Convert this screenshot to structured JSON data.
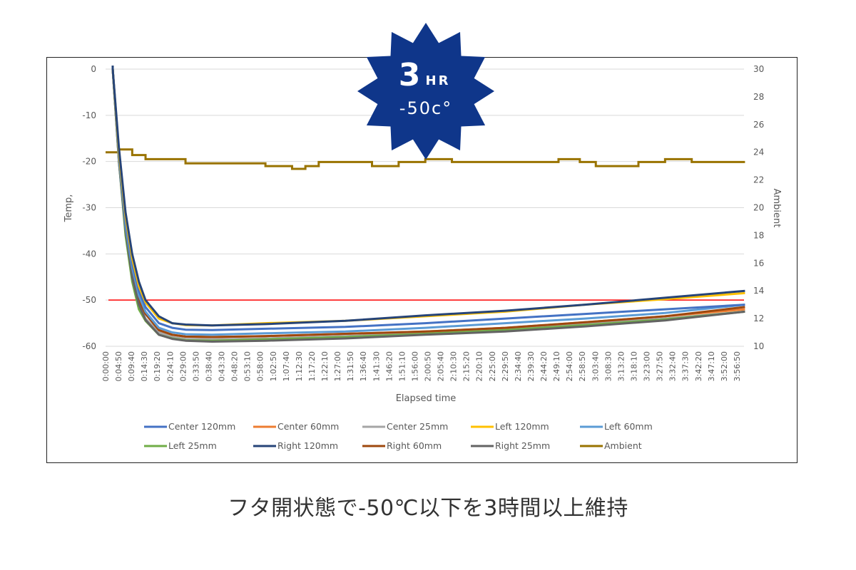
{
  "caption": "フタ開状態で-50℃以下を3時間以上維持",
  "badge": {
    "line1_big": "3",
    "line1_small": "HR",
    "line2": "-50c°",
    "color": "#0f368a"
  },
  "chart_data": {
    "type": "line",
    "xlabel": "Elapsed time",
    "ylabel": "Temp,",
    "y2label": "Ambient",
    "ylim": [
      -60,
      0
    ],
    "y2lim": [
      10,
      30
    ],
    "yticks": [
      0,
      -10,
      -20,
      -30,
      -40,
      -50,
      -60
    ],
    "y2ticks": [
      30,
      28,
      26,
      24,
      22,
      20,
      18,
      16,
      14,
      12,
      10
    ],
    "grid": true,
    "legend": "bottom",
    "threshold": {
      "value": -50,
      "color": "#ff0000"
    },
    "xticks": [
      "0:00:00",
      "0:04:50",
      "0:09:40",
      "0:14:30",
      "0:19:20",
      "0:24:10",
      "0:29:00",
      "0:33:50",
      "0:38:40",
      "0:43:30",
      "0:48:20",
      "0:53:10",
      "0:58:00",
      "1:02:50",
      "1:07:40",
      "1:12:30",
      "1:17:20",
      "1:22:10",
      "1:27:00",
      "1:31:50",
      "1:36:40",
      "1:41:30",
      "1:46:20",
      "1:51:10",
      "1:56:00",
      "2:00:50",
      "2:05:40",
      "2:10:30",
      "2:15:20",
      "2:20:10",
      "2:25:00",
      "2:29:50",
      "2:34:40",
      "2:39:30",
      "2:44:20",
      "2:49:10",
      "2:54:00",
      "2:58:50",
      "3:03:40",
      "3:08:30",
      "3:13:20",
      "3:18:10",
      "3:23:00",
      "3:27:50",
      "3:32:40",
      "3:37:30",
      "3:42:20",
      "3:47:10",
      "3:52:00",
      "3:56:50"
    ],
    "x": [
      "0:02:40",
      "0:05:00",
      "0:07:30",
      "0:10:00",
      "0:12:30",
      "0:15:00",
      "0:20:00",
      "0:25:00",
      "0:30:00",
      "0:40:00",
      "1:00:00",
      "1:30:00",
      "2:00:00",
      "2:30:00",
      "3:00:00",
      "3:30:00",
      "4:00:00"
    ],
    "series": [
      {
        "name": "Center 120mm",
        "color": "#4472c4",
        "axis": "left",
        "values": [
          0,
          -18,
          -33,
          -42,
          -48,
          -51.5,
          -55,
          -56,
          -56.4,
          -56.5,
          -56.2,
          -55.8,
          -55,
          -54,
          -53,
          -52,
          -51
        ]
      },
      {
        "name": "Center 60mm",
        "color": "#ed7d31",
        "axis": "left",
        "values": [
          0,
          -19,
          -34,
          -44,
          -50,
          -53,
          -56.5,
          -57.5,
          -57.9,
          -58,
          -57.8,
          -57.3,
          -56.8,
          -56,
          -54.8,
          -53.5,
          -52
        ]
      },
      {
        "name": "Center 25mm",
        "color": "#a5a5a5",
        "axis": "left",
        "values": [
          0,
          -20,
          -35,
          -45,
          -51,
          -54,
          -57,
          -58,
          -58.4,
          -58.5,
          -58.3,
          -57.8,
          -57.2,
          -56.3,
          -55.2,
          -54,
          -52.5
        ]
      },
      {
        "name": "Left 120mm",
        "color": "#ffc000",
        "axis": "left",
        "values": [
          0,
          -18,
          -32,
          -41,
          -47,
          -50.5,
          -54,
          -55,
          -55.4,
          -55.5,
          -55,
          -54.5,
          -53.5,
          -52.5,
          -51,
          -49.8,
          -48.5
        ]
      },
      {
        "name": "Left 60mm",
        "color": "#5b9bd5",
        "axis": "left",
        "values": [
          0,
          -19,
          -34,
          -43,
          -49,
          -52.5,
          -56,
          -57,
          -57.4,
          -57.5,
          -57.2,
          -56.8,
          -56,
          -55,
          -54,
          -52.8,
          -51
        ]
      },
      {
        "name": "Left 25mm",
        "color": "#70ad47",
        "axis": "left",
        "values": [
          0,
          -20,
          -36,
          -46,
          -52,
          -54.5,
          -57.5,
          -58.3,
          -58.7,
          -58.8,
          -58.5,
          -58,
          -57.3,
          -56.5,
          -55.4,
          -54.2,
          -52.5
        ]
      },
      {
        "name": "Right 120mm",
        "color": "#264478",
        "axis": "left",
        "values": [
          0,
          -17,
          -31,
          -40,
          -46,
          -50,
          -53.5,
          -55,
          -55.3,
          -55.5,
          -55.2,
          -54.5,
          -53.3,
          -52.3,
          -51,
          -49.5,
          -48
        ]
      },
      {
        "name": "Right 60mm",
        "color": "#9e480e",
        "axis": "left",
        "values": [
          0,
          -19,
          -34,
          -44,
          -50,
          -53,
          -56.5,
          -57.5,
          -57.9,
          -58,
          -57.8,
          -57.3,
          -56.8,
          -56,
          -54.8,
          -53.5,
          -51.5
        ]
      },
      {
        "name": "Right 25mm",
        "color": "#636363",
        "axis": "left",
        "values": [
          0,
          -20,
          -35,
          -45,
          -51,
          -54.3,
          -57.5,
          -58.4,
          -58.8,
          -59,
          -58.8,
          -58.3,
          -57.5,
          -56.8,
          -55.7,
          -54.4,
          -52.5
        ]
      }
    ],
    "ambient": {
      "name": "Ambient",
      "color": "#997300",
      "axis": "right",
      "x": [
        "0:00:00",
        "0:05:00",
        "0:10:00",
        "0:15:00",
        "0:20:00",
        "0:30:00",
        "0:40:00",
        "1:00:00",
        "1:10:00",
        "1:15:00",
        "1:20:00",
        "1:40:00",
        "1:50:00",
        "2:00:00",
        "2:10:00",
        "2:40:00",
        "2:50:00",
        "2:58:00",
        "3:04:00",
        "3:10:00",
        "3:20:00",
        "3:30:00",
        "3:40:00",
        "4:00:00"
      ],
      "values": [
        24,
        24.2,
        23.8,
        23.5,
        23.5,
        23.2,
        23.2,
        23.0,
        22.8,
        23.0,
        23.3,
        23.0,
        23.3,
        23.5,
        23.3,
        23.3,
        23.5,
        23.3,
        23.0,
        23.0,
        23.3,
        23.5,
        23.3,
        23.3
      ]
    }
  }
}
